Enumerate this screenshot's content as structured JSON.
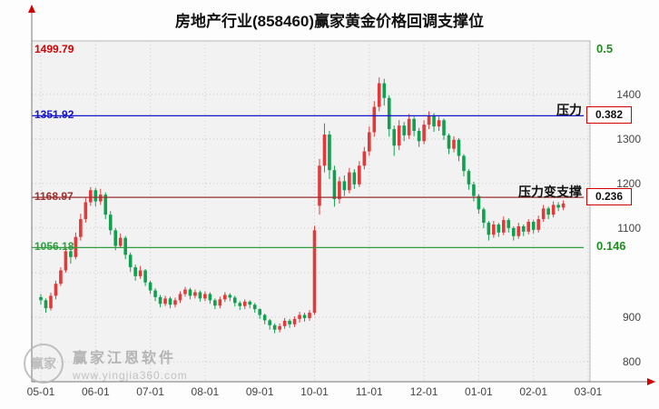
{
  "title": "房地产行业(858460)赢家黄金价格回调支撑位",
  "watermark": {
    "logo_text": "赢家",
    "brand": "赢家江恩软件",
    "url": "www.yingjia360.com"
  },
  "colors": {
    "up": "#e23a3a",
    "down": "#10a050",
    "plot_bg": "#f2f2f2",
    "plot_border": "#b8b8b8",
    "grid": "#c9c9c9",
    "axis": "#777777",
    "axis_arrow": "#d40000",
    "tick_text": "#444444",
    "box_border": "#d40000"
  },
  "y_axis": {
    "ticks": [
      {
        "label": "1400",
        "value": 1400
      },
      {
        "label": "1300",
        "value": 1300
      },
      {
        "label": "1200",
        "value": 1200
      },
      {
        "label": "1100",
        "value": 1100
      },
      {
        "label": "",
        "value": 1000
      },
      {
        "label": "900",
        "value": 900
      },
      {
        "label": "800",
        "value": 800
      }
    ]
  },
  "x_axis": {
    "labels": [
      "05-01",
      "06-01",
      "07-01",
      "08-01",
      "09-01",
      "10-01",
      "11-01",
      "12-01",
      "01-01",
      "02-01",
      "03-01"
    ]
  },
  "chart_data": {
    "type": "candlestick",
    "title": "房地产行业(858460)赢家黄金价格回调支撑位",
    "ylim": [
      800,
      1520
    ],
    "x_tick_labels": [
      "05-01",
      "06-01",
      "07-01",
      "08-01",
      "09-01",
      "10-01",
      "11-01",
      "12-01",
      "01-01",
      "02-01",
      "03-01"
    ],
    "candles_per_month": 11,
    "up_color_meaning": "price rise (red)",
    "down_color_meaning": "price fall (green)",
    "levels": [
      {
        "ratio_label": "0.5",
        "price_label": "1499.79",
        "value": 1499.79,
        "line_color": null,
        "price_color": "#d40000",
        "ratio_color": "#1e8e1e",
        "boxed": false,
        "annotation": null
      },
      {
        "ratio_label": "0.382",
        "price_label": "1351.92",
        "value": 1351.92,
        "line_color": "#1515cc",
        "price_color": "#1515cc",
        "ratio_color": "#111111",
        "boxed": true,
        "annotation": "压力"
      },
      {
        "ratio_label": "0.236",
        "price_label": "1168.97",
        "value": 1168.97,
        "line_color": "#9b3030",
        "price_color": "#9b3030",
        "ratio_color": "#111111",
        "boxed": true,
        "annotation": "压力变支撑"
      },
      {
        "ratio_label": "0.146",
        "price_label": "1056.18",
        "value": 1056.18,
        "line_color": "#2e9e3e",
        "price_color": "#2e9e3e",
        "ratio_color": "#1e8e1e",
        "boxed": false,
        "annotation": null
      }
    ],
    "candles": [
      [
        945,
        952,
        928,
        938
      ],
      [
        938,
        942,
        910,
        920
      ],
      [
        920,
        955,
        915,
        948
      ],
      [
        948,
        982,
        940,
        975
      ],
      [
        975,
        1012,
        970,
        1005
      ],
      [
        1005,
        1055,
        1000,
        1048
      ],
      [
        1048,
        1060,
        1020,
        1035
      ],
      [
        1035,
        1090,
        1030,
        1080
      ],
      [
        1080,
        1132,
        1072,
        1120
      ],
      [
        1120,
        1170,
        1112,
        1158
      ],
      [
        1158,
        1192,
        1150,
        1185
      ],
      [
        1185,
        1190,
        1148,
        1160
      ],
      [
        1160,
        1188,
        1152,
        1175
      ],
      [
        1175,
        1180,
        1120,
        1130
      ],
      [
        1130,
        1138,
        1085,
        1095
      ],
      [
        1095,
        1100,
        1050,
        1060
      ],
      [
        1060,
        1088,
        1055,
        1078
      ],
      [
        1078,
        1082,
        1030,
        1040
      ],
      [
        1040,
        1045,
        1002,
        1012
      ],
      [
        1012,
        1018,
        982,
        992
      ],
      [
        992,
        1015,
        986,
        1005
      ],
      [
        1005,
        1008,
        970,
        978
      ],
      [
        978,
        982,
        952,
        960
      ],
      [
        960,
        965,
        936,
        945
      ],
      [
        945,
        950,
        922,
        930
      ],
      [
        930,
        948,
        925,
        942
      ],
      [
        942,
        946,
        920,
        928
      ],
      [
        928,
        944,
        922,
        938
      ],
      [
        938,
        958,
        932,
        952
      ],
      [
        952,
        968,
        946,
        962
      ],
      [
        962,
        966,
        940,
        948
      ],
      [
        948,
        962,
        942,
        956
      ],
      [
        956,
        960,
        935,
        942
      ],
      [
        942,
        958,
        936,
        952
      ],
      [
        952,
        956,
        930,
        938
      ],
      [
        938,
        942,
        918,
        926
      ],
      [
        926,
        946,
        920,
        940
      ],
      [
        940,
        956,
        934,
        950
      ],
      [
        950,
        954,
        936,
        944
      ],
      [
        944,
        948,
        924,
        932
      ],
      [
        932,
        936,
        916,
        925
      ],
      [
        925,
        940,
        918,
        935
      ],
      [
        935,
        938,
        920,
        928
      ],
      [
        928,
        932,
        910,
        918
      ],
      [
        918,
        920,
        896,
        905
      ],
      [
        905,
        908,
        884,
        893
      ],
      [
        893,
        896,
        872,
        882
      ],
      [
        882,
        886,
        864,
        872
      ],
      [
        872,
        886,
        866,
        880
      ],
      [
        880,
        898,
        874,
        892
      ],
      [
        892,
        896,
        876,
        884
      ],
      [
        884,
        902,
        878,
        896
      ],
      [
        896,
        912,
        888,
        905
      ],
      [
        905,
        910,
        890,
        898
      ],
      [
        898,
        916,
        892,
        910
      ],
      [
        910,
        1105,
        905,
        1095
      ],
      [
        1150,
        1255,
        1130,
        1240
      ],
      [
        1240,
        1335,
        1225,
        1310
      ],
      [
        1310,
        1318,
        1210,
        1230
      ],
      [
        1230,
        1240,
        1148,
        1165
      ],
      [
        1165,
        1215,
        1155,
        1205
      ],
      [
        1205,
        1218,
        1172,
        1185
      ],
      [
        1185,
        1235,
        1178,
        1225
      ],
      [
        1225,
        1232,
        1188,
        1198
      ],
      [
        1198,
        1250,
        1192,
        1240
      ],
      [
        1240,
        1282,
        1232,
        1272
      ],
      [
        1272,
        1328,
        1262,
        1315
      ],
      [
        1315,
        1385,
        1305,
        1372
      ],
      [
        1372,
        1438,
        1362,
        1425
      ],
      [
        1425,
        1435,
        1375,
        1392
      ],
      [
        1392,
        1398,
        1305,
        1322
      ],
      [
        1322,
        1330,
        1262,
        1285
      ],
      [
        1285,
        1342,
        1275,
        1330
      ],
      [
        1330,
        1338,
        1295,
        1308
      ],
      [
        1308,
        1356,
        1300,
        1345
      ],
      [
        1345,
        1350,
        1306,
        1318
      ],
      [
        1318,
        1325,
        1282,
        1295
      ],
      [
        1295,
        1342,
        1288,
        1332
      ],
      [
        1332,
        1362,
        1322,
        1352
      ],
      [
        1352,
        1358,
        1316,
        1328
      ],
      [
        1328,
        1350,
        1318,
        1342
      ],
      [
        1342,
        1346,
        1298,
        1308
      ],
      [
        1308,
        1312,
        1266,
        1278
      ],
      [
        1278,
        1306,
        1270,
        1298
      ],
      [
        1298,
        1302,
        1250,
        1262
      ],
      [
        1262,
        1266,
        1216,
        1228
      ],
      [
        1228,
        1232,
        1186,
        1198
      ],
      [
        1198,
        1204,
        1160,
        1172
      ],
      [
        1172,
        1176,
        1132,
        1142
      ],
      [
        1142,
        1146,
        1100,
        1112
      ],
      [
        1112,
        1116,
        1072,
        1085
      ],
      [
        1085,
        1116,
        1078,
        1108
      ],
      [
        1108,
        1112,
        1080,
        1090
      ],
      [
        1090,
        1126,
        1084,
        1118
      ],
      [
        1118,
        1122,
        1090,
        1100
      ],
      [
        1100,
        1104,
        1072,
        1082
      ],
      [
        1082,
        1112,
        1076,
        1104
      ],
      [
        1104,
        1108,
        1082,
        1092
      ],
      [
        1092,
        1120,
        1086,
        1114
      ],
      [
        1114,
        1118,
        1088,
        1096
      ],
      [
        1096,
        1128,
        1090,
        1120
      ],
      [
        1120,
        1152,
        1114,
        1144
      ],
      [
        1144,
        1148,
        1120,
        1130
      ],
      [
        1130,
        1160,
        1124,
        1152
      ],
      [
        1152,
        1158,
        1138,
        1146
      ],
      [
        1146,
        1162,
        1140,
        1155
      ]
    ]
  }
}
